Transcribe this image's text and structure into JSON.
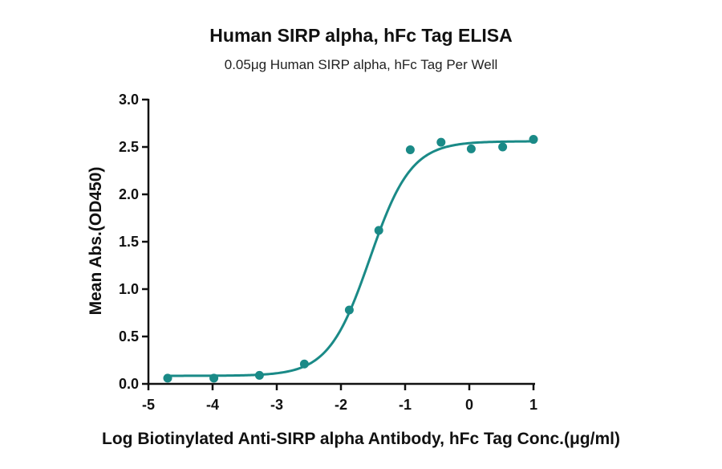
{
  "chart_data": {
    "type": "scatter",
    "title": "Human SIRP alpha, hFc Tag ELISA",
    "subtitle": "0.05μg Human SIRP alpha, hFc Tag Per Well",
    "xlabel": "Log Biotinylated Anti-SIRP alpha Antibody, hFc Tag Conc.(μg/ml)",
    "ylabel": "Mean Abs.(OD450)",
    "xlim": [
      -5,
      1
    ],
    "ylim": [
      0,
      3.0
    ],
    "xticks": [
      -5,
      -4,
      -3,
      -2,
      -1,
      0,
      1
    ],
    "xtick_labels": [
      "-5",
      "-4",
      "-3",
      "-2",
      "-1",
      "0",
      "1"
    ],
    "yticks": [
      0,
      0.5,
      1.0,
      1.5,
      2.0,
      2.5,
      3.0
    ],
    "ytick_labels": [
      "0.0",
      "0.5",
      "1.0",
      "1.5",
      "2.0",
      "2.5",
      "3.0"
    ],
    "grid": false,
    "color": "#1a8a87",
    "series": [
      {
        "x": [
          -4.7,
          -3.98,
          -3.27,
          -2.57,
          -1.87,
          -1.41,
          -0.92,
          -0.44,
          0.03,
          0.52,
          1.0
        ],
        "y": [
          0.06,
          0.06,
          0.09,
          0.21,
          0.78,
          1.62,
          2.47,
          2.55,
          2.48,
          2.5,
          2.58
        ]
      }
    ],
    "fit_curve": {
      "model": "4PL",
      "bottom": 0.085,
      "top": 2.56,
      "log_ec50": -1.55,
      "hill_slope": 1.35
    }
  }
}
